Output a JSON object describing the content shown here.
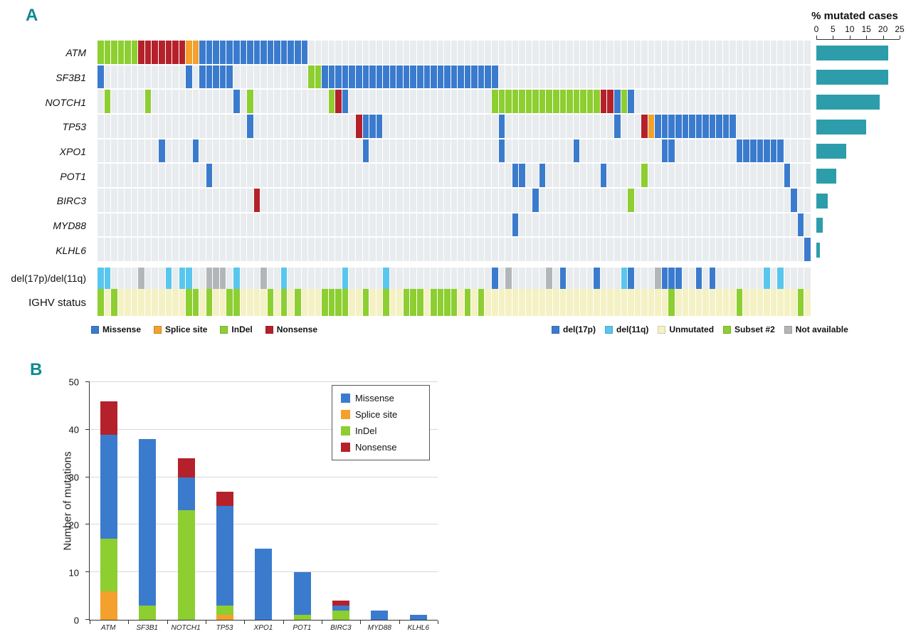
{
  "panelA": {
    "label": "A",
    "row_labels": [
      "ATM",
      "SF3B1",
      "NOTCH1",
      "TP53",
      "XPO1",
      "POT1",
      "BIRC3",
      "MYD88",
      "KLHL6"
    ],
    "annotation_labels": [
      "del(17p)/del(11q)",
      "IGHV status"
    ],
    "mutation_legend": [
      {
        "label": "Missense",
        "key": "missense"
      },
      {
        "label": "Splice site",
        "key": "splice"
      },
      {
        "label": "InDel",
        "key": "indel"
      },
      {
        "label": "Nonsense",
        "key": "nonsense"
      }
    ],
    "annotation_legend": [
      {
        "label": "del(17p)",
        "key": "del17p"
      },
      {
        "label": "del(11q)",
        "key": "del11q"
      },
      {
        "label": "Unmutated",
        "key": "unmutated"
      },
      {
        "label": "Subset #2",
        "key": "subset2"
      },
      {
        "label": "Not available",
        "key": "na"
      }
    ],
    "colors": {
      "missense": "#3b7bce",
      "splice": "#f3a02c",
      "indel": "#8dce31",
      "nonsense": "#b5212b",
      "del17p": "#3b7bce",
      "del11q": "#59c6ed",
      "unmutated": "#f4f1c4",
      "subset2": "#8dce31",
      "na": "#b3b6b8",
      "matrix_bg": "#e8ecee",
      "bar": "#2d9dab",
      "panel_letter": "#0f8a93"
    },
    "percent_axis": {
      "title": "% mutated cases",
      "ticks": [
        0,
        5,
        10,
        15,
        20,
        25
      ],
      "max": 25
    }
  },
  "panelB": {
    "label": "B",
    "ylabel": "Number of mutations",
    "y_ticks": [
      0,
      10,
      20,
      30,
      40,
      50
    ],
    "ymax": 50,
    "legend": [
      {
        "label": "Missense",
        "key": "missense"
      },
      {
        "label": "Splice site",
        "key": "splice"
      },
      {
        "label": "InDel",
        "key": "indel"
      },
      {
        "label": "Nonsense",
        "key": "nonsense"
      }
    ]
  },
  "chart_data": [
    {
      "type": "heatmap",
      "title": "",
      "rows": [
        "ATM",
        "SF3B1",
        "NOTCH1",
        "TP53",
        "XPO1",
        "POT1",
        "BIRC3",
        "MYD88",
        "KLHL6"
      ],
      "columns": 105,
      "cell_legend": [
        "Missense",
        "Splice site",
        "InDel",
        "Nonsense"
      ],
      "segments": {
        "ATM": [
          [
            0,
            6,
            "indel"
          ],
          [
            6,
            7,
            "nonsense"
          ],
          [
            13,
            2,
            "splice"
          ],
          [
            15,
            16,
            "missense"
          ]
        ],
        "SF3B1": [
          [
            0,
            1,
            "missense"
          ],
          [
            13,
            1,
            "missense"
          ],
          [
            15,
            5,
            "missense"
          ],
          [
            31,
            2,
            "indel"
          ],
          [
            33,
            26,
            "missense"
          ]
        ],
        "NOTCH1": [
          [
            1,
            1,
            "indel"
          ],
          [
            7,
            1,
            "indel"
          ],
          [
            20,
            1,
            "missense"
          ],
          [
            22,
            1,
            "indel"
          ],
          [
            34,
            1,
            "indel"
          ],
          [
            35,
            1,
            "nonsense"
          ],
          [
            36,
            1,
            "missense"
          ],
          [
            58,
            16,
            "indel"
          ],
          [
            74,
            2,
            "nonsense"
          ],
          [
            76,
            1,
            "missense"
          ],
          [
            77,
            1,
            "indel"
          ],
          [
            78,
            1,
            "missense"
          ]
        ],
        "TP53": [
          [
            22,
            1,
            "missense"
          ],
          [
            38,
            1,
            "nonsense"
          ],
          [
            39,
            3,
            "missense"
          ],
          [
            59,
            1,
            "missense"
          ],
          [
            76,
            1,
            "missense"
          ],
          [
            80,
            1,
            "nonsense"
          ],
          [
            81,
            1,
            "splice"
          ],
          [
            82,
            12,
            "missense"
          ]
        ],
        "XPO1": [
          [
            9,
            1,
            "missense"
          ],
          [
            14,
            1,
            "missense"
          ],
          [
            39,
            1,
            "missense"
          ],
          [
            59,
            1,
            "missense"
          ],
          [
            70,
            1,
            "missense"
          ],
          [
            83,
            2,
            "missense"
          ],
          [
            94,
            7,
            "missense"
          ]
        ],
        "POT1": [
          [
            16,
            1,
            "missense"
          ],
          [
            61,
            2,
            "missense"
          ],
          [
            65,
            1,
            "missense"
          ],
          [
            74,
            1,
            "missense"
          ],
          [
            80,
            1,
            "indel"
          ],
          [
            101,
            1,
            "missense"
          ]
        ],
        "BIRC3": [
          [
            23,
            1,
            "nonsense"
          ],
          [
            64,
            1,
            "missense"
          ],
          [
            78,
            1,
            "indel"
          ],
          [
            102,
            1,
            "missense"
          ]
        ],
        "MYD88": [
          [
            61,
            1,
            "missense"
          ],
          [
            103,
            1,
            "missense"
          ]
        ],
        "KLHL6": [
          [
            104,
            1,
            "missense"
          ]
        ]
      },
      "annotation_rows": [
        {
          "label": "del(17p)/del(11q)",
          "background": "none",
          "segments": [
            [
              0,
              2,
              "del11q"
            ],
            [
              6,
              1,
              "na"
            ],
            [
              10,
              1,
              "del11q"
            ],
            [
              12,
              2,
              "del11q"
            ],
            [
              16,
              3,
              "na"
            ],
            [
              20,
              1,
              "del11q"
            ],
            [
              24,
              1,
              "na"
            ],
            [
              27,
              1,
              "del11q"
            ],
            [
              36,
              1,
              "del11q"
            ],
            [
              42,
              1,
              "del11q"
            ],
            [
              58,
              1,
              "del17p"
            ],
            [
              60,
              1,
              "na"
            ],
            [
              66,
              1,
              "na"
            ],
            [
              68,
              1,
              "del17p"
            ],
            [
              73,
              1,
              "del17p"
            ],
            [
              77,
              1,
              "del11q"
            ],
            [
              78,
              1,
              "del17p"
            ],
            [
              82,
              1,
              "na"
            ],
            [
              83,
              3,
              "del17p"
            ],
            [
              88,
              1,
              "del17p"
            ],
            [
              90,
              1,
              "del17p"
            ],
            [
              98,
              1,
              "del11q"
            ],
            [
              100,
              1,
              "del11q"
            ]
          ]
        },
        {
          "label": "IGHV status",
          "background": "unmutated",
          "segments": [
            [
              0,
              1,
              "subset2"
            ],
            [
              2,
              1,
              "subset2"
            ],
            [
              13,
              2,
              "subset2"
            ],
            [
              16,
              1,
              "subset2"
            ],
            [
              19,
              2,
              "subset2"
            ],
            [
              25,
              1,
              "subset2"
            ],
            [
              27,
              1,
              "subset2"
            ],
            [
              29,
              1,
              "subset2"
            ],
            [
              33,
              4,
              "subset2"
            ],
            [
              39,
              1,
              "subset2"
            ],
            [
              42,
              1,
              "subset2"
            ],
            [
              45,
              3,
              "subset2"
            ],
            [
              49,
              4,
              "subset2"
            ],
            [
              54,
              1,
              "subset2"
            ],
            [
              56,
              1,
              "subset2"
            ],
            [
              84,
              1,
              "subset2"
            ],
            [
              94,
              1,
              "subset2"
            ],
            [
              103,
              1,
              "subset2"
            ]
          ]
        }
      ]
    },
    {
      "type": "bar",
      "orientation": "horizontal",
      "title": "% mutated cases",
      "categories": [
        "ATM",
        "SF3B1",
        "NOTCH1",
        "TP53",
        "XPO1",
        "POT1",
        "BIRC3",
        "MYD88",
        "KLHL6"
      ],
      "values": [
        21.5,
        21.5,
        19,
        15,
        9,
        6,
        3.5,
        2,
        1
      ],
      "xlim": [
        0,
        25
      ],
      "ticks": [
        0,
        5,
        10,
        15,
        20,
        25
      ]
    },
    {
      "type": "bar",
      "stacked": true,
      "title": "",
      "categories": [
        "ATM",
        "SF3B1",
        "NOTCH1",
        "TP53",
        "XPO1",
        "POT1",
        "BIRC3",
        "MYD88",
        "KLHL6"
      ],
      "series": [
        {
          "name": "Splice site",
          "key": "splice",
          "values": [
            6,
            0,
            0,
            1,
            0,
            0,
            0,
            0,
            0
          ]
        },
        {
          "name": "InDel",
          "key": "indel",
          "values": [
            11,
            3,
            23,
            2,
            0,
            1,
            2,
            0,
            0
          ]
        },
        {
          "name": "Missense",
          "key": "missense",
          "values": [
            22,
            35,
            7,
            21,
            15,
            9,
            1,
            2,
            1
          ]
        },
        {
          "name": "Nonsense",
          "key": "nonsense",
          "values": [
            7,
            0,
            4,
            3,
            0,
            0,
            1,
            0,
            0
          ]
        }
      ],
      "totals": [
        46,
        38,
        34,
        27,
        15,
        10,
        4,
        2,
        1
      ],
      "ylabel": "Number of mutations",
      "ylim": [
        0,
        50
      ],
      "grid": true,
      "legend_position": "upper right",
      "legend_order": [
        "Missense",
        "Splice site",
        "InDel",
        "Nonsense"
      ]
    }
  ]
}
